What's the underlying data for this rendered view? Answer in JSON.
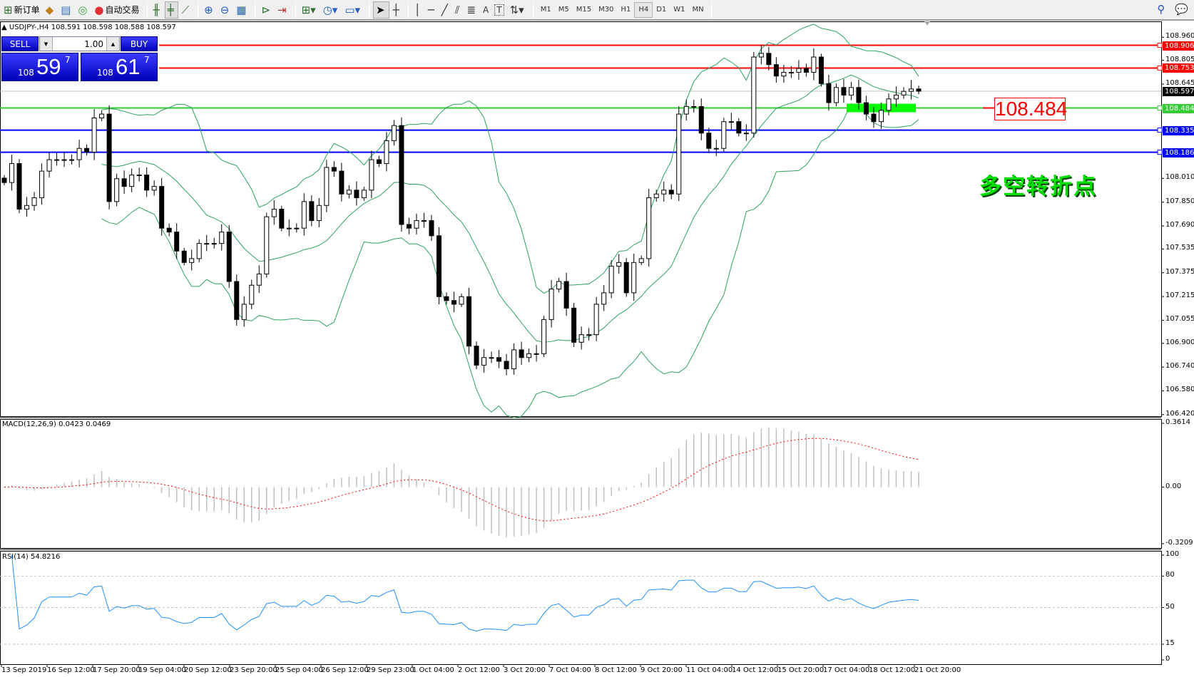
{
  "toolbar": {
    "new_order": "新订单",
    "auto_trade": "自动交易",
    "icons": [
      "new-order-icon",
      "navigator-icon",
      "terminal-icon",
      "signals-icon",
      "auto-trading-icon",
      "bar-chart-icon",
      "candlestick-icon",
      "line-chart-icon",
      "zoom-in-icon",
      "zoom-out-icon",
      "tile-windows-icon",
      "chart-shift-icon",
      "autoscroll-icon",
      "indicators-icon",
      "periods-icon",
      "templates-icon",
      "cursor-icon",
      "crosshair-icon",
      "vertical-line-icon",
      "horizontal-line-icon",
      "trendline-icon",
      "equidistant-channel-icon",
      "fibonacci-icon",
      "text-icon",
      "text-label-icon",
      "arrows-icon",
      "search-icon",
      "chat-icon"
    ],
    "text_tool": "A",
    "label_tool": "T",
    "timeframes": [
      "M1",
      "M5",
      "M15",
      "M30",
      "H1",
      "H4",
      "D1",
      "W1",
      "MN"
    ],
    "active_timeframe": "H4"
  },
  "chart": {
    "header": "USDJPY-,H4  108.591 108.598 108.588 108.597",
    "trade_panel": {
      "sell_label": "SELL",
      "buy_label": "BUY",
      "lot": "1.00",
      "sell_big": "108",
      "sell_main": "59",
      "sell_sup": "7",
      "buy_big": "108",
      "buy_main": "61",
      "buy_sup": "7"
    },
    "price_axis": [
      "108.960",
      "108.805",
      "108.645",
      "108.010",
      "107.850",
      "107.690",
      "107.535",
      "107.375",
      "107.215",
      "107.055",
      "106.900",
      "106.740",
      "106.580",
      "106.420"
    ],
    "price_range": [
      106.42,
      108.96
    ],
    "lines": [
      {
        "price": 108.906,
        "label": "108.906",
        "color": "#ff0000"
      },
      {
        "price": 108.753,
        "label": "108.753",
        "color": "#ff0000"
      },
      {
        "price": 108.484,
        "label": "108.484",
        "color": "#33cc33"
      },
      {
        "price": 108.335,
        "label": "108.335",
        "color": "#0000ff"
      },
      {
        "price": 108.186,
        "label": "108.186",
        "color": "#0000ff"
      }
    ],
    "current_price": {
      "price": 108.597,
      "label": "108.597",
      "color": "#000000"
    },
    "annotation_price": "108.484",
    "annotation_text": "多空转折点",
    "highlight_color": "#00ff00",
    "closes": [
      107.982,
      108.11,
      107.803,
      107.828,
      107.88,
      108.059,
      108.136,
      108.136,
      108.136,
      108.136,
      108.212,
      108.187,
      108.417,
      108.443,
      107.854,
      108.008,
      107.956,
      108.033,
      108.033,
      107.931,
      107.956,
      107.675,
      107.649,
      107.521,
      107.444,
      107.47,
      107.572,
      107.572,
      107.572,
      107.649,
      107.316,
      107.06,
      107.163,
      107.291,
      107.367,
      107.752,
      107.803,
      107.675,
      107.675,
      107.675,
      107.854,
      107.726,
      107.828,
      108.084,
      108.059,
      107.905,
      107.931,
      107.88,
      107.931,
      108.136,
      108.11,
      108.264,
      108.366,
      107.7,
      107.675,
      107.726,
      107.726,
      107.624,
      107.214,
      107.188,
      107.163,
      107.214,
      106.881,
      106.753,
      106.804,
      106.804,
      106.779,
      106.728,
      106.856,
      106.804,
      106.83,
      106.83,
      107.06,
      107.265,
      107.316,
      107.137,
      106.907,
      106.958,
      106.958,
      107.163,
      107.24,
      107.419,
      107.444,
      107.24,
      107.444,
      107.47,
      107.88,
      107.905,
      107.931,
      107.905,
      108.443,
      108.494,
      108.494,
      108.315,
      108.212,
      108.212,
      108.392,
      108.392,
      108.315,
      108.315,
      108.827,
      108.852,
      108.776,
      108.699,
      108.724,
      108.724,
      108.75,
      108.724,
      108.827,
      108.648,
      108.52,
      108.622,
      108.571,
      108.622,
      108.52,
      108.443,
      108.392,
      108.468,
      108.545,
      108.571,
      108.596,
      108.612,
      108.597
    ],
    "band_color": "#2ca25f"
  },
  "macd": {
    "label": "MACD(12,26,9) 0.0423 0.0469",
    "axis": [
      "0.3614",
      "0.00",
      "-0.3209"
    ],
    "range": [
      -0.3209,
      0.3614
    ],
    "histogram_color": "#c0c0c0",
    "signal_color": "#ff0000"
  },
  "rsi": {
    "label": "RSI(14) 54.8216",
    "axis": [
      "100",
      "80",
      "50",
      "15",
      "0"
    ],
    "levels": [
      80,
      50,
      15
    ],
    "color": "#1e90ff"
  },
  "time_axis": [
    "13 Sep 2019",
    "16 Sep 12:00",
    "17 Sep 20:00",
    "19 Sep 04:00",
    "20 Sep 12:00",
    "23 Sep 20:00",
    "25 Sep 04:00",
    "26 Sep 12:00",
    "29 Sep 23:00",
    "1 Oct 04:00",
    "2 Oct 12:00",
    "3 Oct 20:00",
    "7 Oct 04:00",
    "8 Oct 12:00",
    "9 Oct 20:00",
    "11 Oct 04:00",
    "14 Oct 12:00",
    "15 Oct 20:00",
    "17 Oct 04:00",
    "18 Oct 12:00",
    "21 Oct 20:00"
  ]
}
